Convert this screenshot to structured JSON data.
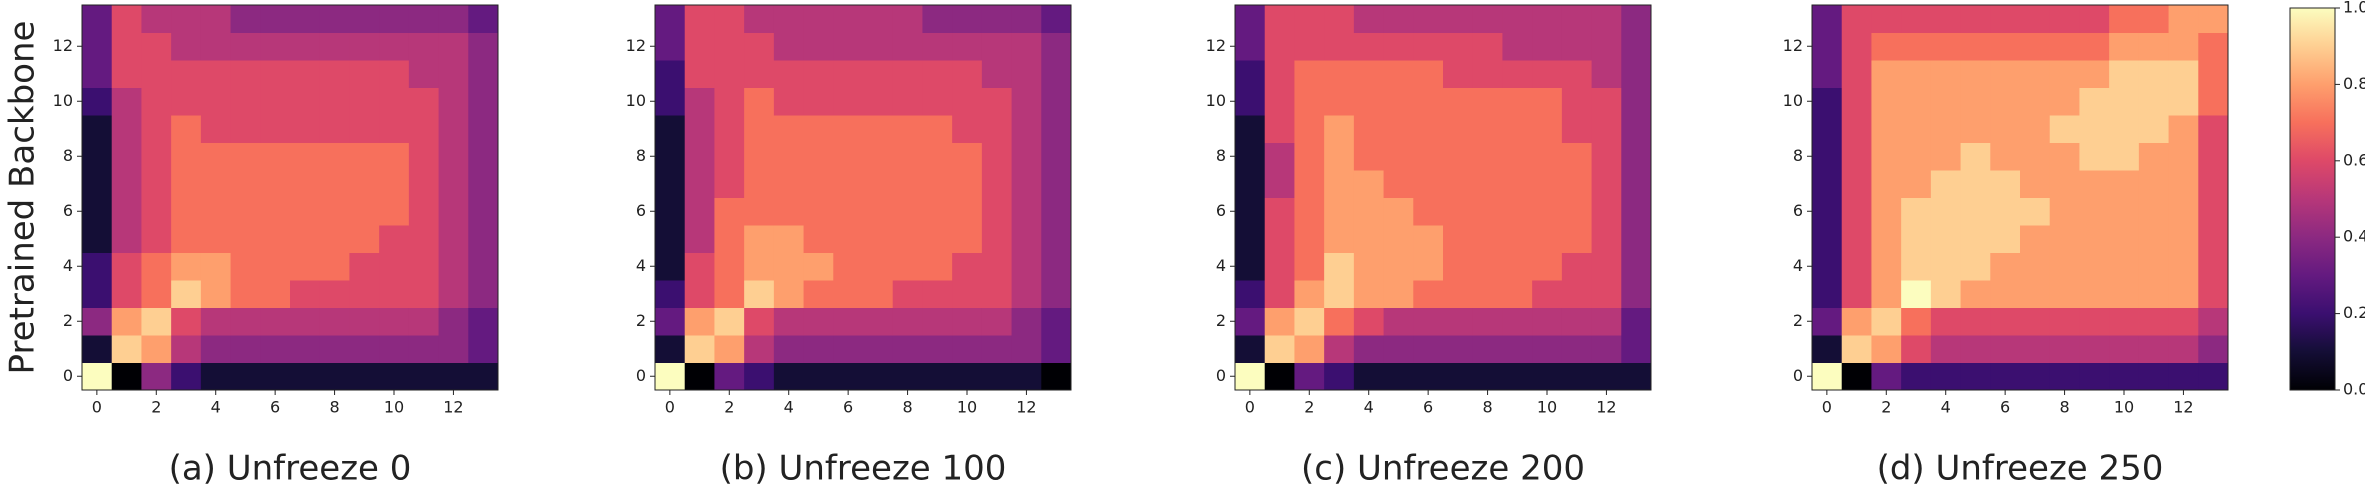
{
  "chart_data": [
    {
      "type": "heatmap",
      "title": "(a) Unfreeze 0",
      "ylabel": "Pretrained Backbone",
      "xlim": [
        -0.5,
        13.5
      ],
      "ylim": [
        -0.5,
        13.5
      ],
      "xticks": [
        0,
        2,
        4,
        6,
        8,
        10,
        12
      ],
      "yticks": [
        0,
        2,
        4,
        6,
        8,
        10,
        12
      ],
      "colormap": "magma",
      "values": [
        [
          1.0,
          0.0,
          0.4,
          0.2,
          0.1,
          0.1,
          0.1,
          0.1,
          0.1,
          0.1,
          0.1,
          0.1,
          0.1,
          0.1
        ],
        [
          0.1,
          0.9,
          0.8,
          0.5,
          0.4,
          0.4,
          0.4,
          0.4,
          0.4,
          0.4,
          0.4,
          0.4,
          0.4,
          0.3
        ],
        [
          0.4,
          0.8,
          0.9,
          0.6,
          0.5,
          0.5,
          0.5,
          0.5,
          0.5,
          0.5,
          0.5,
          0.5,
          0.4,
          0.3
        ],
        [
          0.2,
          0.6,
          0.7,
          0.9,
          0.8,
          0.7,
          0.7,
          0.6,
          0.6,
          0.6,
          0.6,
          0.6,
          0.5,
          0.4
        ],
        [
          0.2,
          0.6,
          0.7,
          0.8,
          0.8,
          0.7,
          0.7,
          0.7,
          0.7,
          0.6,
          0.6,
          0.6,
          0.5,
          0.4
        ],
        [
          0.1,
          0.5,
          0.6,
          0.7,
          0.7,
          0.7,
          0.7,
          0.7,
          0.7,
          0.7,
          0.6,
          0.6,
          0.5,
          0.4
        ],
        [
          0.1,
          0.5,
          0.6,
          0.7,
          0.7,
          0.7,
          0.7,
          0.7,
          0.7,
          0.7,
          0.7,
          0.6,
          0.5,
          0.4
        ],
        [
          0.1,
          0.5,
          0.6,
          0.7,
          0.7,
          0.7,
          0.7,
          0.7,
          0.7,
          0.7,
          0.7,
          0.6,
          0.5,
          0.4
        ],
        [
          0.1,
          0.5,
          0.6,
          0.7,
          0.7,
          0.7,
          0.7,
          0.7,
          0.7,
          0.7,
          0.7,
          0.6,
          0.5,
          0.4
        ],
        [
          0.1,
          0.5,
          0.6,
          0.7,
          0.6,
          0.6,
          0.6,
          0.6,
          0.6,
          0.6,
          0.6,
          0.6,
          0.5,
          0.4
        ],
        [
          0.2,
          0.5,
          0.6,
          0.6,
          0.6,
          0.6,
          0.6,
          0.6,
          0.6,
          0.6,
          0.6,
          0.6,
          0.5,
          0.4
        ],
        [
          0.3,
          0.6,
          0.6,
          0.6,
          0.6,
          0.6,
          0.6,
          0.6,
          0.6,
          0.6,
          0.6,
          0.5,
          0.5,
          0.4
        ],
        [
          0.3,
          0.6,
          0.6,
          0.5,
          0.5,
          0.5,
          0.5,
          0.5,
          0.5,
          0.5,
          0.5,
          0.5,
          0.5,
          0.4
        ],
        [
          0.3,
          0.6,
          0.5,
          0.5,
          0.5,
          0.4,
          0.4,
          0.4,
          0.4,
          0.4,
          0.4,
          0.4,
          0.4,
          0.3
        ]
      ]
    },
    {
      "type": "heatmap",
      "title": "(b) Unfreeze 100",
      "xlim": [
        -0.5,
        13.5
      ],
      "ylim": [
        -0.5,
        13.5
      ],
      "xticks": [
        0,
        2,
        4,
        6,
        8,
        10,
        12
      ],
      "yticks": [
        0,
        2,
        4,
        6,
        8,
        10,
        12
      ],
      "colormap": "magma",
      "values": [
        [
          1.0,
          0.0,
          0.3,
          0.2,
          0.1,
          0.1,
          0.1,
          0.1,
          0.1,
          0.1,
          0.1,
          0.1,
          0.1,
          0.0
        ],
        [
          0.1,
          0.9,
          0.8,
          0.5,
          0.4,
          0.4,
          0.4,
          0.4,
          0.4,
          0.4,
          0.4,
          0.4,
          0.4,
          0.3
        ],
        [
          0.3,
          0.8,
          0.9,
          0.6,
          0.5,
          0.5,
          0.5,
          0.5,
          0.5,
          0.5,
          0.5,
          0.5,
          0.4,
          0.3
        ],
        [
          0.2,
          0.6,
          0.7,
          0.9,
          0.8,
          0.7,
          0.7,
          0.7,
          0.6,
          0.6,
          0.6,
          0.6,
          0.5,
          0.4
        ],
        [
          0.1,
          0.6,
          0.7,
          0.8,
          0.8,
          0.8,
          0.7,
          0.7,
          0.7,
          0.7,
          0.6,
          0.6,
          0.5,
          0.4
        ],
        [
          0.1,
          0.5,
          0.7,
          0.8,
          0.8,
          0.7,
          0.7,
          0.7,
          0.7,
          0.7,
          0.7,
          0.6,
          0.5,
          0.4
        ],
        [
          0.1,
          0.5,
          0.7,
          0.7,
          0.7,
          0.7,
          0.7,
          0.7,
          0.7,
          0.7,
          0.7,
          0.6,
          0.5,
          0.4
        ],
        [
          0.1,
          0.5,
          0.6,
          0.7,
          0.7,
          0.7,
          0.7,
          0.7,
          0.7,
          0.7,
          0.7,
          0.6,
          0.5,
          0.4
        ],
        [
          0.1,
          0.5,
          0.6,
          0.7,
          0.7,
          0.7,
          0.7,
          0.7,
          0.7,
          0.7,
          0.7,
          0.6,
          0.5,
          0.4
        ],
        [
          0.1,
          0.5,
          0.6,
          0.7,
          0.7,
          0.7,
          0.7,
          0.7,
          0.7,
          0.7,
          0.6,
          0.6,
          0.5,
          0.4
        ],
        [
          0.2,
          0.5,
          0.6,
          0.7,
          0.6,
          0.6,
          0.6,
          0.6,
          0.6,
          0.6,
          0.6,
          0.6,
          0.5,
          0.4
        ],
        [
          0.2,
          0.6,
          0.6,
          0.6,
          0.6,
          0.6,
          0.6,
          0.6,
          0.6,
          0.6,
          0.6,
          0.5,
          0.5,
          0.4
        ],
        [
          0.3,
          0.6,
          0.6,
          0.6,
          0.5,
          0.5,
          0.5,
          0.5,
          0.5,
          0.5,
          0.5,
          0.5,
          0.5,
          0.4
        ],
        [
          0.3,
          0.6,
          0.6,
          0.5,
          0.5,
          0.5,
          0.5,
          0.5,
          0.5,
          0.4,
          0.4,
          0.4,
          0.4,
          0.3
        ]
      ]
    },
    {
      "type": "heatmap",
      "title": "(c) Unfreeze 200",
      "xlim": [
        -0.5,
        13.5
      ],
      "ylim": [
        -0.5,
        13.5
      ],
      "xticks": [
        0,
        2,
        4,
        6,
        8,
        10,
        12
      ],
      "yticks": [
        0,
        2,
        4,
        6,
        8,
        10,
        12
      ],
      "colormap": "magma",
      "values": [
        [
          1.0,
          0.0,
          0.3,
          0.2,
          0.1,
          0.1,
          0.1,
          0.1,
          0.1,
          0.1,
          0.1,
          0.1,
          0.1,
          0.1
        ],
        [
          0.1,
          0.9,
          0.8,
          0.5,
          0.4,
          0.4,
          0.4,
          0.4,
          0.4,
          0.4,
          0.4,
          0.4,
          0.4,
          0.3
        ],
        [
          0.3,
          0.8,
          0.9,
          0.7,
          0.6,
          0.5,
          0.5,
          0.5,
          0.5,
          0.5,
          0.5,
          0.5,
          0.5,
          0.3
        ],
        [
          0.2,
          0.6,
          0.8,
          0.9,
          0.8,
          0.8,
          0.7,
          0.7,
          0.7,
          0.7,
          0.6,
          0.6,
          0.6,
          0.4
        ],
        [
          0.1,
          0.6,
          0.7,
          0.9,
          0.8,
          0.8,
          0.8,
          0.7,
          0.7,
          0.7,
          0.7,
          0.6,
          0.6,
          0.4
        ],
        [
          0.1,
          0.6,
          0.7,
          0.8,
          0.8,
          0.8,
          0.8,
          0.7,
          0.7,
          0.7,
          0.7,
          0.7,
          0.6,
          0.4
        ],
        [
          0.1,
          0.6,
          0.7,
          0.8,
          0.8,
          0.8,
          0.7,
          0.7,
          0.7,
          0.7,
          0.7,
          0.7,
          0.6,
          0.4
        ],
        [
          0.1,
          0.5,
          0.7,
          0.8,
          0.8,
          0.7,
          0.7,
          0.7,
          0.7,
          0.7,
          0.7,
          0.7,
          0.6,
          0.4
        ],
        [
          0.1,
          0.5,
          0.7,
          0.8,
          0.7,
          0.7,
          0.7,
          0.7,
          0.7,
          0.7,
          0.7,
          0.7,
          0.6,
          0.4
        ],
        [
          0.1,
          0.6,
          0.7,
          0.8,
          0.7,
          0.7,
          0.7,
          0.7,
          0.7,
          0.7,
          0.7,
          0.6,
          0.6,
          0.4
        ],
        [
          0.2,
          0.6,
          0.7,
          0.7,
          0.7,
          0.7,
          0.7,
          0.7,
          0.7,
          0.7,
          0.7,
          0.6,
          0.6,
          0.4
        ],
        [
          0.2,
          0.6,
          0.7,
          0.7,
          0.7,
          0.7,
          0.7,
          0.6,
          0.6,
          0.6,
          0.6,
          0.6,
          0.5,
          0.4
        ],
        [
          0.3,
          0.6,
          0.6,
          0.6,
          0.6,
          0.6,
          0.6,
          0.6,
          0.6,
          0.5,
          0.5,
          0.5,
          0.5,
          0.4
        ],
        [
          0.3,
          0.6,
          0.6,
          0.6,
          0.5,
          0.5,
          0.5,
          0.5,
          0.5,
          0.5,
          0.5,
          0.5,
          0.5,
          0.4
        ]
      ]
    },
    {
      "type": "heatmap",
      "title": "(d) Unfreeze 250",
      "xlim": [
        -0.5,
        13.5
      ],
      "ylim": [
        -0.5,
        13.5
      ],
      "xticks": [
        0,
        2,
        4,
        6,
        8,
        10,
        12
      ],
      "yticks": [
        0,
        2,
        4,
        6,
        8,
        10,
        12
      ],
      "colormap": "magma",
      "values": [
        [
          1.0,
          0.0,
          0.3,
          0.2,
          0.2,
          0.2,
          0.2,
          0.2,
          0.2,
          0.2,
          0.2,
          0.2,
          0.2,
          0.2
        ],
        [
          0.1,
          0.9,
          0.8,
          0.6,
          0.5,
          0.5,
          0.5,
          0.5,
          0.5,
          0.5,
          0.5,
          0.5,
          0.5,
          0.4
        ],
        [
          0.3,
          0.8,
          0.9,
          0.7,
          0.6,
          0.6,
          0.6,
          0.6,
          0.6,
          0.6,
          0.6,
          0.6,
          0.6,
          0.5
        ],
        [
          0.2,
          0.6,
          0.8,
          1.0,
          0.9,
          0.8,
          0.8,
          0.8,
          0.8,
          0.8,
          0.8,
          0.8,
          0.8,
          0.6
        ],
        [
          0.2,
          0.6,
          0.8,
          0.9,
          0.9,
          0.9,
          0.8,
          0.8,
          0.8,
          0.8,
          0.8,
          0.8,
          0.8,
          0.6
        ],
        [
          0.2,
          0.6,
          0.8,
          0.9,
          0.9,
          0.9,
          0.9,
          0.8,
          0.8,
          0.8,
          0.8,
          0.8,
          0.8,
          0.6
        ],
        [
          0.2,
          0.6,
          0.8,
          0.9,
          0.9,
          0.9,
          0.9,
          0.9,
          0.8,
          0.8,
          0.8,
          0.8,
          0.8,
          0.6
        ],
        [
          0.2,
          0.6,
          0.8,
          0.8,
          0.9,
          0.9,
          0.9,
          0.8,
          0.8,
          0.8,
          0.8,
          0.8,
          0.8,
          0.6
        ],
        [
          0.2,
          0.6,
          0.8,
          0.8,
          0.8,
          0.9,
          0.8,
          0.8,
          0.8,
          0.9,
          0.9,
          0.8,
          0.8,
          0.6
        ],
        [
          0.2,
          0.6,
          0.8,
          0.8,
          0.8,
          0.8,
          0.8,
          0.8,
          0.9,
          0.9,
          0.9,
          0.9,
          0.8,
          0.6
        ],
        [
          0.2,
          0.6,
          0.8,
          0.8,
          0.8,
          0.8,
          0.8,
          0.8,
          0.8,
          0.9,
          0.9,
          0.9,
          0.9,
          0.7
        ],
        [
          0.3,
          0.6,
          0.8,
          0.8,
          0.8,
          0.8,
          0.8,
          0.8,
          0.8,
          0.8,
          0.9,
          0.9,
          0.9,
          0.7
        ],
        [
          0.3,
          0.6,
          0.7,
          0.7,
          0.7,
          0.7,
          0.7,
          0.7,
          0.7,
          0.7,
          0.8,
          0.8,
          0.8,
          0.7
        ],
        [
          0.3,
          0.6,
          0.6,
          0.6,
          0.6,
          0.6,
          0.6,
          0.6,
          0.6,
          0.6,
          0.7,
          0.7,
          0.8,
          0.8
        ]
      ]
    }
  ],
  "colorbar": {
    "colormap": "magma",
    "lim": [
      0,
      1
    ],
    "ticks": [
      {
        "value": 0,
        "label": "0.0"
      },
      {
        "value": 0.2,
        "label": "0.2"
      },
      {
        "value": 0.4,
        "label": "0.4"
      },
      {
        "value": 0.6,
        "label": "0.6"
      },
      {
        "value": 0.8,
        "label": "0.8"
      },
      {
        "value": 1,
        "label": "1.0"
      }
    ]
  }
}
